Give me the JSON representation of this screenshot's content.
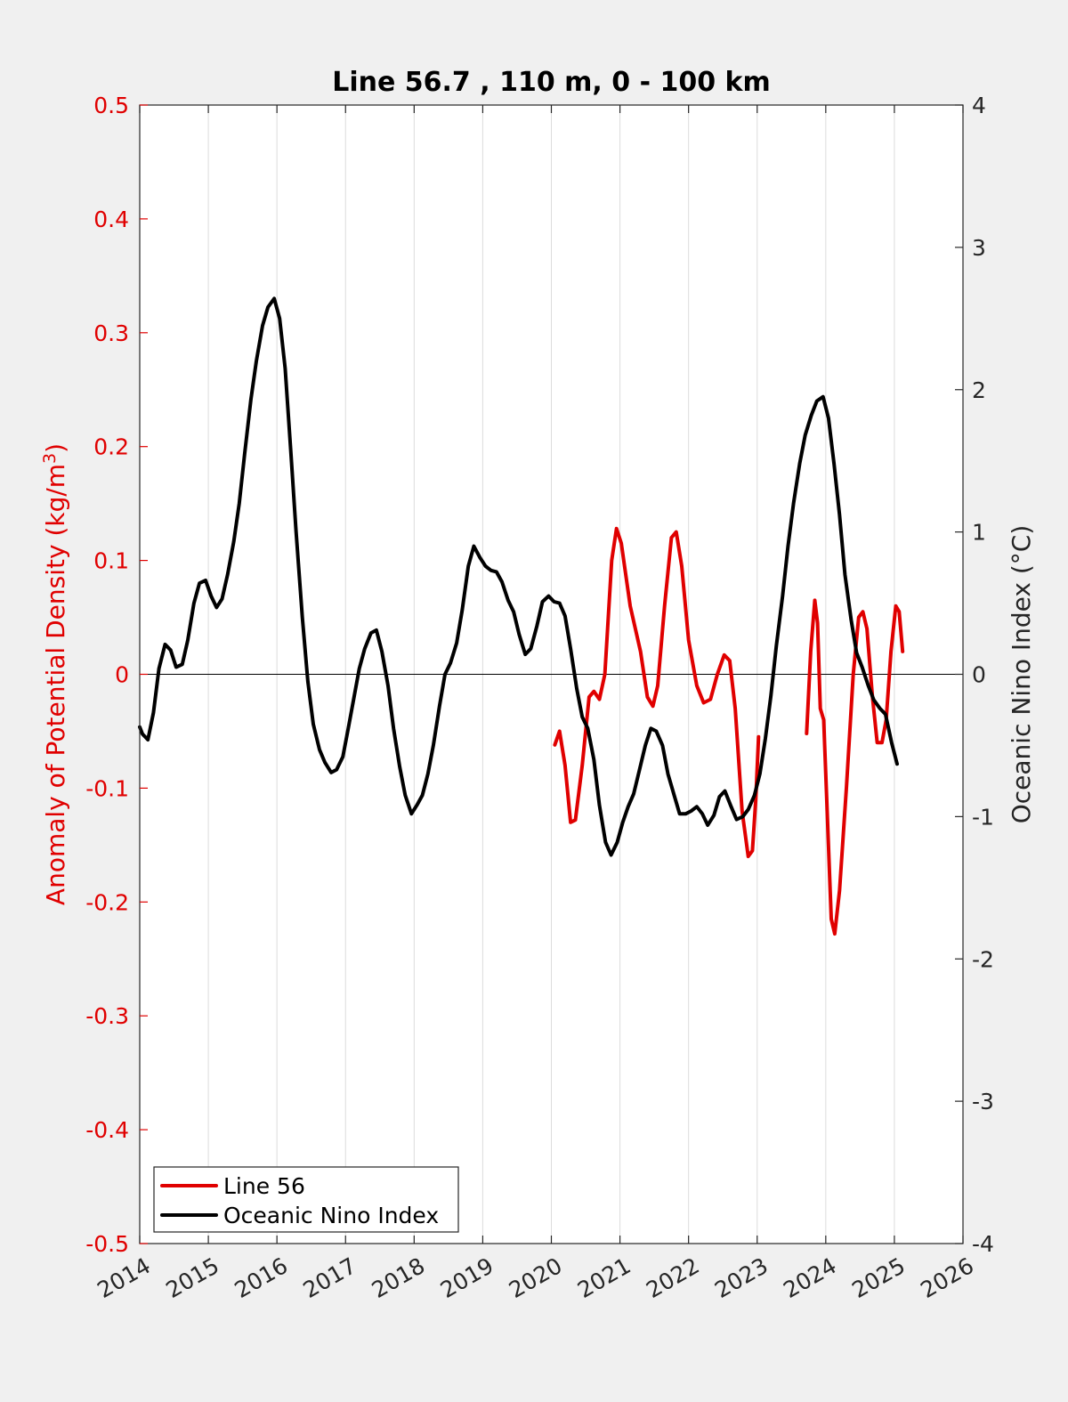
{
  "chart_data": {
    "type": "line",
    "title": "Line 56.7 , 110 m, 0 - 100 km",
    "xlabel": "",
    "ylabel_left": "Anomaly of Potential Density (kg/m3)",
    "ylabel_left_base": "Anomaly of Potential Density (kg/m",
    "ylabel_left_sup": "3",
    "ylabel_left_close": ")",
    "ylabel_right": "Oceanic Nino Index (°C)",
    "xlim": [
      2014,
      2026
    ],
    "ylim_left": [
      -0.5,
      0.5
    ],
    "ylim_right": [
      -4,
      4
    ],
    "x_ticks": [
      "2014",
      "2015",
      "2016",
      "2017",
      "2018",
      "2019",
      "2020",
      "2021",
      "2022",
      "2023",
      "2024",
      "2025",
      "2026"
    ],
    "y_left_ticks": [
      "0.5",
      "0.4",
      "0.3",
      "0.2",
      "0.1",
      "0",
      "-0.1",
      "-0.2",
      "-0.3",
      "-0.4",
      "-0.5"
    ],
    "y_right_ticks": [
      "4",
      "3",
      "2",
      "1",
      "0",
      "-1",
      "-2",
      "-3",
      "-4"
    ],
    "grid": "vertical",
    "legend_position": "bottom-left",
    "series": [
      {
        "name": "Line 56",
        "axis": "left",
        "color": "#e00000",
        "segments": [
          [
            [
              2020.05,
              -0.062
            ],
            [
              2020.12,
              -0.05
            ],
            [
              2020.2,
              -0.08
            ],
            [
              2020.28,
              -0.13
            ],
            [
              2020.35,
              -0.128
            ],
            [
              2020.45,
              -0.08
            ],
            [
              2020.55,
              -0.02
            ],
            [
              2020.62,
              -0.015
            ],
            [
              2020.7,
              -0.022
            ],
            [
              2020.78,
              0.0
            ],
            [
              2020.88,
              0.1
            ],
            [
              2020.95,
              0.128
            ],
            [
              2021.02,
              0.115
            ],
            [
              2021.15,
              0.06
            ],
            [
              2021.3,
              0.02
            ],
            [
              2021.4,
              -0.02
            ],
            [
              2021.48,
              -0.028
            ],
            [
              2021.55,
              -0.01
            ],
            [
              2021.65,
              0.06
            ],
            [
              2021.75,
              0.12
            ],
            [
              2021.82,
              0.125
            ],
            [
              2021.9,
              0.095
            ],
            [
              2022.0,
              0.03
            ],
            [
              2022.12,
              -0.01
            ],
            [
              2022.22,
              -0.025
            ],
            [
              2022.32,
              -0.022
            ],
            [
              2022.42,
              0.0
            ],
            [
              2022.52,
              0.017
            ],
            [
              2022.6,
              0.012
            ],
            [
              2022.68,
              -0.03
            ],
            [
              2022.78,
              -0.12
            ],
            [
              2022.87,
              -0.16
            ],
            [
              2022.93,
              -0.155
            ],
            [
              2022.98,
              -0.11
            ],
            [
              2023.02,
              -0.055
            ]
          ],
          [
            [
              2023.72,
              -0.052
            ],
            [
              2023.78,
              0.02
            ],
            [
              2023.84,
              0.065
            ],
            [
              2023.88,
              0.045
            ],
            [
              2023.92,
              -0.03
            ],
            [
              2023.97,
              -0.04
            ],
            [
              2024.02,
              -0.12
            ],
            [
              2024.08,
              -0.215
            ],
            [
              2024.13,
              -0.228
            ],
            [
              2024.2,
              -0.19
            ],
            [
              2024.3,
              -0.1
            ],
            [
              2024.4,
              0.0
            ],
            [
              2024.48,
              0.05
            ],
            [
              2024.54,
              0.055
            ],
            [
              2024.6,
              0.04
            ],
            [
              2024.68,
              -0.02
            ],
            [
              2024.75,
              -0.06
            ],
            [
              2024.82,
              -0.06
            ],
            [
              2024.88,
              -0.04
            ],
            [
              2024.95,
              0.02
            ],
            [
              2025.02,
              0.06
            ],
            [
              2025.07,
              0.055
            ],
            [
              2025.12,
              0.02
            ]
          ]
        ]
      },
      {
        "name": "Oceanic Nino Index",
        "axis": "right",
        "color": "#000000",
        "segments": [
          [
            [
              2014.0,
              -0.37
            ],
            [
              2014.04,
              -0.42
            ],
            [
              2014.12,
              -0.46
            ],
            [
              2014.2,
              -0.27
            ],
            [
              2014.28,
              0.04
            ],
            [
              2014.37,
              0.21
            ],
            [
              2014.45,
              0.17
            ],
            [
              2014.53,
              0.05
            ],
            [
              2014.62,
              0.07
            ],
            [
              2014.7,
              0.24
            ],
            [
              2014.79,
              0.5
            ],
            [
              2014.87,
              0.64
            ],
            [
              2014.96,
              0.66
            ],
            [
              2015.04,
              0.55
            ],
            [
              2015.12,
              0.47
            ],
            [
              2015.2,
              0.53
            ],
            [
              2015.28,
              0.7
            ],
            [
              2015.37,
              0.93
            ],
            [
              2015.45,
              1.2
            ],
            [
              2015.53,
              1.55
            ],
            [
              2015.62,
              1.93
            ],
            [
              2015.7,
              2.2
            ],
            [
              2015.79,
              2.45
            ],
            [
              2015.87,
              2.58
            ],
            [
              2015.96,
              2.64
            ],
            [
              2016.04,
              2.5
            ],
            [
              2016.12,
              2.15
            ],
            [
              2016.2,
              1.58
            ],
            [
              2016.28,
              1.0
            ],
            [
              2016.37,
              0.4
            ],
            [
              2016.45,
              -0.05
            ],
            [
              2016.53,
              -0.35
            ],
            [
              2016.62,
              -0.53
            ],
            [
              2016.7,
              -0.62
            ],
            [
              2016.79,
              -0.69
            ],
            [
              2016.87,
              -0.67
            ],
            [
              2016.96,
              -0.58
            ],
            [
              2017.04,
              -0.38
            ],
            [
              2017.12,
              -0.17
            ],
            [
              2017.2,
              0.04
            ],
            [
              2017.28,
              0.18
            ],
            [
              2017.37,
              0.29
            ],
            [
              2017.45,
              0.31
            ],
            [
              2017.53,
              0.16
            ],
            [
              2017.62,
              -0.08
            ],
            [
              2017.7,
              -0.38
            ],
            [
              2017.79,
              -0.65
            ],
            [
              2017.87,
              -0.85
            ],
            [
              2017.96,
              -0.98
            ],
            [
              2018.04,
              -0.92
            ],
            [
              2018.12,
              -0.85
            ],
            [
              2018.2,
              -0.7
            ],
            [
              2018.28,
              -0.5
            ],
            [
              2018.37,
              -0.22
            ],
            [
              2018.45,
              0.0
            ],
            [
              2018.53,
              0.08
            ],
            [
              2018.62,
              0.22
            ],
            [
              2018.7,
              0.45
            ],
            [
              2018.79,
              0.76
            ],
            [
              2018.87,
              0.9
            ],
            [
              2018.96,
              0.82
            ],
            [
              2019.04,
              0.76
            ],
            [
              2019.12,
              0.73
            ],
            [
              2019.2,
              0.72
            ],
            [
              2019.28,
              0.65
            ],
            [
              2019.37,
              0.52
            ],
            [
              2019.45,
              0.44
            ],
            [
              2019.53,
              0.28
            ],
            [
              2019.62,
              0.14
            ],
            [
              2019.7,
              0.18
            ],
            [
              2019.79,
              0.34
            ],
            [
              2019.87,
              0.51
            ],
            [
              2019.96,
              0.55
            ],
            [
              2020.04,
              0.51
            ],
            [
              2020.12,
              0.5
            ],
            [
              2020.2,
              0.41
            ],
            [
              2020.28,
              0.18
            ],
            [
              2020.37,
              -0.1
            ],
            [
              2020.45,
              -0.3
            ],
            [
              2020.53,
              -0.38
            ],
            [
              2020.62,
              -0.6
            ],
            [
              2020.7,
              -0.92
            ],
            [
              2020.79,
              -1.18
            ],
            [
              2020.87,
              -1.27
            ],
            [
              2020.96,
              -1.18
            ],
            [
              2021.04,
              -1.04
            ],
            [
              2021.12,
              -0.93
            ],
            [
              2021.2,
              -0.84
            ],
            [
              2021.28,
              -0.68
            ],
            [
              2021.37,
              -0.5
            ],
            [
              2021.45,
              -0.38
            ],
            [
              2021.53,
              -0.4
            ],
            [
              2021.62,
              -0.5
            ],
            [
              2021.7,
              -0.7
            ],
            [
              2021.79,
              -0.85
            ],
            [
              2021.87,
              -0.98
            ],
            [
              2021.96,
              -0.98
            ],
            [
              2022.04,
              -0.96
            ],
            [
              2022.12,
              -0.93
            ],
            [
              2022.2,
              -0.98
            ],
            [
              2022.28,
              -1.06
            ],
            [
              2022.37,
              -0.99
            ],
            [
              2022.45,
              -0.86
            ],
            [
              2022.53,
              -0.82
            ],
            [
              2022.62,
              -0.93
            ],
            [
              2022.7,
              -1.02
            ],
            [
              2022.79,
              -1.0
            ],
            [
              2022.87,
              -0.95
            ],
            [
              2022.96,
              -0.85
            ],
            [
              2023.04,
              -0.7
            ],
            [
              2023.12,
              -0.45
            ],
            [
              2023.2,
              -0.15
            ],
            [
              2023.28,
              0.2
            ],
            [
              2023.37,
              0.55
            ],
            [
              2023.45,
              0.9
            ],
            [
              2023.53,
              1.2
            ],
            [
              2023.62,
              1.48
            ],
            [
              2023.7,
              1.68
            ],
            [
              2023.79,
              1.82
            ],
            [
              2023.87,
              1.92
            ],
            [
              2023.96,
              1.95
            ],
            [
              2024.04,
              1.8
            ],
            [
              2024.12,
              1.48
            ],
            [
              2024.2,
              1.12
            ],
            [
              2024.28,
              0.7
            ],
            [
              2024.37,
              0.38
            ],
            [
              2024.45,
              0.15
            ],
            [
              2024.53,
              0.05
            ],
            [
              2024.62,
              -0.08
            ],
            [
              2024.7,
              -0.18
            ],
            [
              2024.79,
              -0.24
            ],
            [
              2024.87,
              -0.28
            ],
            [
              2024.96,
              -0.48
            ],
            [
              2025.04,
              -0.63
            ]
          ]
        ]
      }
    ]
  }
}
